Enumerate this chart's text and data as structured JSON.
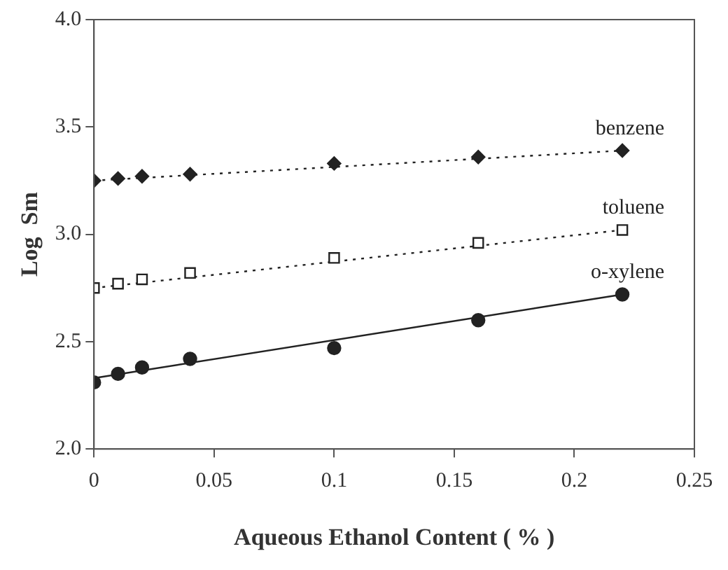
{
  "chart_data": {
    "type": "scatter",
    "xlabel": "Aqueous Ethanol Content ( % )",
    "ylabel": "Log  Sm",
    "xlim": [
      0,
      0.25
    ],
    "xticks": [
      0,
      0.05,
      0.1,
      0.15,
      0.2,
      0.25
    ],
    "ylim": [
      2.0,
      4.0
    ],
    "yticks": [
      {
        "value": 2,
        "label": "2.0"
      },
      {
        "value": 2.5,
        "label": "2.5"
      },
      {
        "value": 3,
        "label": "3.0"
      },
      {
        "value": 3.5,
        "label": "3.5"
      },
      {
        "value": 4,
        "label": "4.0"
      }
    ],
    "grid": false,
    "legend": false,
    "series": [
      {
        "name": "benzene",
        "type": "scatter",
        "marker": "diamond",
        "color": "#222222",
        "x": [
          0,
          0.01,
          0.02,
          0.04,
          0.1,
          0.16,
          0.22
        ],
        "values": [
          3.25,
          3.26,
          3.27,
          3.28,
          3.33,
          3.36,
          3.39
        ]
      },
      {
        "name": "toluene",
        "type": "scatter",
        "marker": "square",
        "color": "#222222",
        "x": [
          0,
          0.01,
          0.02,
          0.04,
          0.1,
          0.16,
          0.22
        ],
        "values": [
          2.75,
          2.77,
          2.79,
          2.82,
          2.89,
          2.96,
          3.02
        ]
      },
      {
        "name": "o-xylene",
        "type": "scatter",
        "marker": "circle",
        "color": "#222222",
        "x": [
          0,
          0.01,
          0.02,
          0.04,
          0.1,
          0.16,
          0.22
        ],
        "values": [
          2.31,
          2.35,
          2.38,
          2.42,
          2.47,
          2.6,
          2.72
        ]
      },
      {
        "type": "line",
        "marker": "none",
        "line_style": "dotted",
        "color": "#222222",
        "x": [
          0,
          0.22
        ],
        "values": [
          3.25,
          3.39
        ]
      },
      {
        "type": "line",
        "marker": "none",
        "line_style": "dotted",
        "color": "#222222",
        "x": [
          0,
          0.22
        ],
        "values": [
          2.75,
          3.02
        ]
      },
      {
        "type": "line",
        "marker": "none",
        "line_style": "solid",
        "color": "#222222",
        "x": [
          0,
          0.22
        ],
        "values": [
          2.33,
          2.72
        ]
      }
    ]
  }
}
